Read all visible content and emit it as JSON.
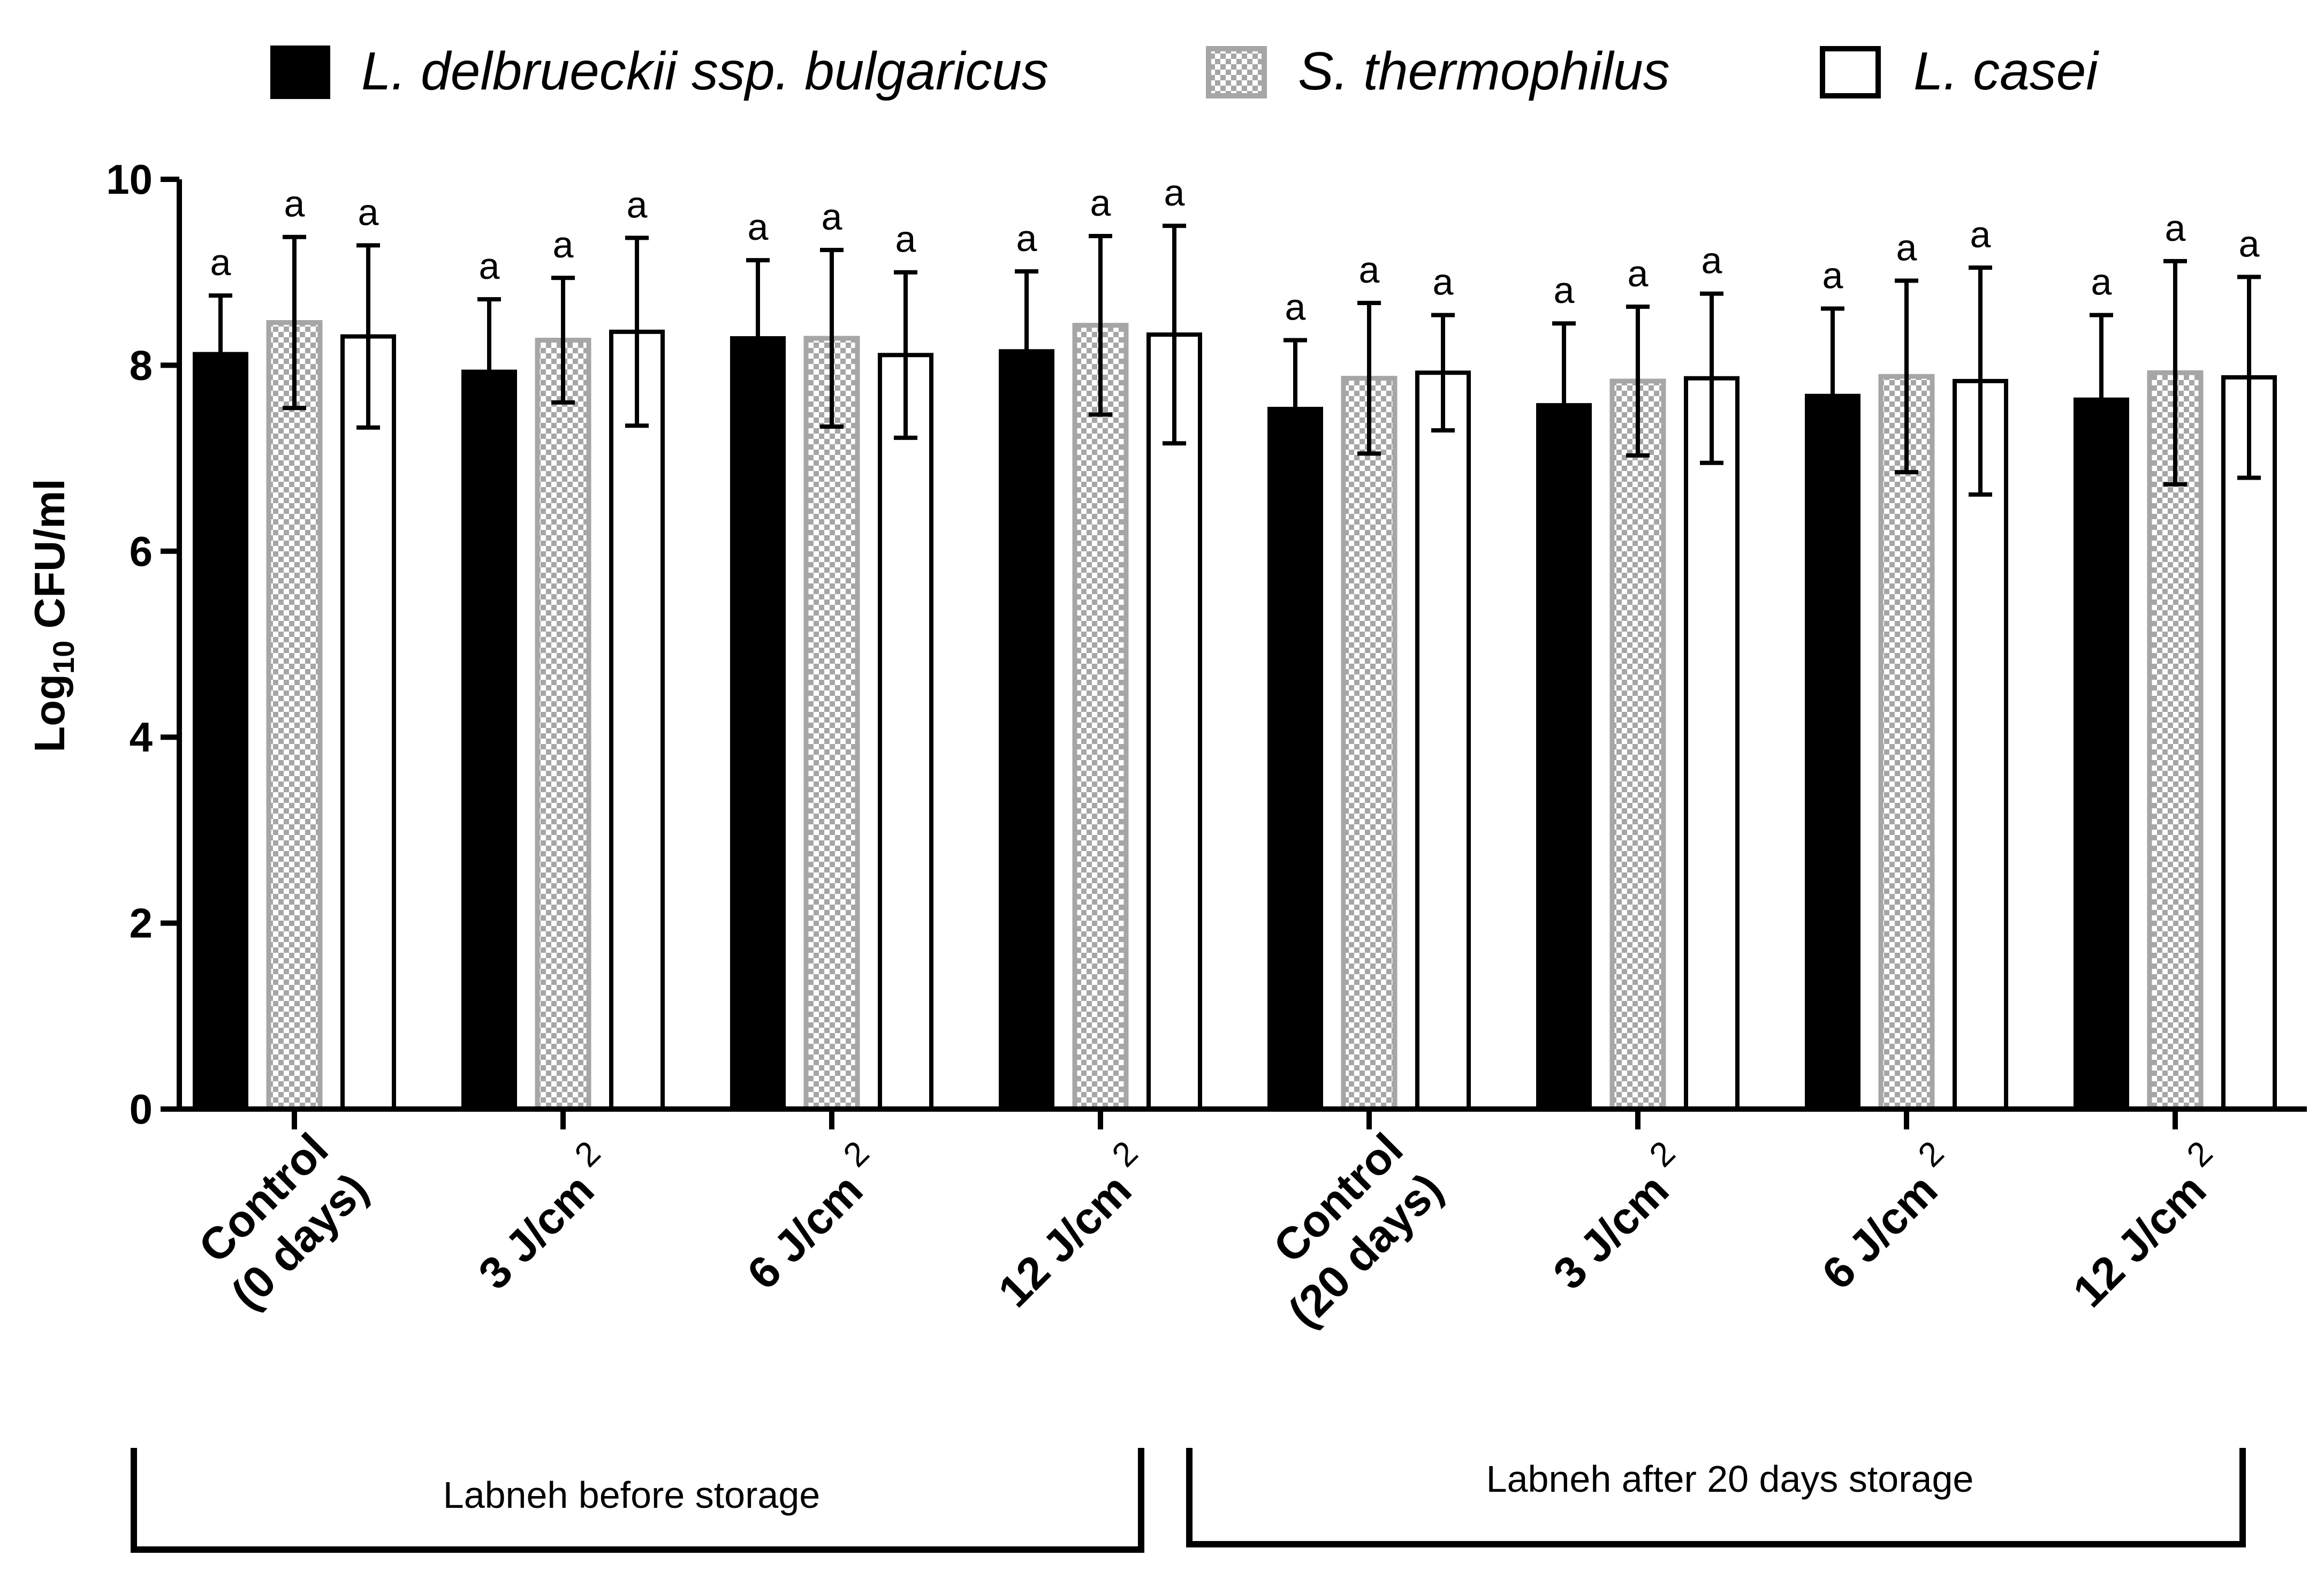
{
  "chart_data": {
    "type": "bar",
    "ylabel_main": "Log",
    "ylabel_sub": "10",
    "ylabel_rest": " CFU/ml",
    "ylim": [
      0,
      10
    ],
    "yticks": [
      "0",
      "2",
      "4",
      "6",
      "8",
      "10"
    ],
    "legend_position": "top",
    "categories": [
      {
        "line1": "Control",
        "line2": "(0 days)"
      },
      {
        "line1": "3 J/cm",
        "sup": "2"
      },
      {
        "line1": "6 J/cm",
        "sup": "2"
      },
      {
        "line1": "12 J/cm",
        "sup": "2"
      },
      {
        "line1": "Control",
        "line2": "(20 days)"
      },
      {
        "line1": "3 J/cm",
        "sup": "2"
      },
      {
        "line1": "6 J/cm",
        "sup": "2"
      },
      {
        "line1": "12 J/cm",
        "sup": "2"
      }
    ],
    "series": [
      {
        "name": "L. delbrueckii ssp. bulgaricus",
        "style": "solid",
        "color": "#000000",
        "values": [
          8.12,
          7.93,
          8.29,
          8.15,
          7.53,
          7.57,
          7.67,
          7.63
        ],
        "errors": [
          0.63,
          0.78,
          0.84,
          0.86,
          0.74,
          0.88,
          0.94,
          0.91
        ],
        "labels": [
          "a",
          "a",
          "a",
          "a",
          "a",
          "a",
          "a",
          "a"
        ]
      },
      {
        "name": "S. thermophilus",
        "style": "checkered",
        "color": "#a6a6a6",
        "values": [
          8.46,
          8.27,
          8.29,
          8.43,
          7.86,
          7.83,
          7.88,
          7.92
        ],
        "errors": [
          0.92,
          0.67,
          0.95,
          0.96,
          0.81,
          0.8,
          1.03,
          1.2
        ],
        "labels": [
          "a",
          "a",
          "a",
          "a",
          "a",
          "a",
          "a",
          "a"
        ]
      },
      {
        "name": "L. casei",
        "style": "open",
        "color": "#000000",
        "values": [
          8.31,
          8.36,
          8.11,
          8.33,
          7.92,
          7.86,
          7.83,
          7.87
        ],
        "errors": [
          0.98,
          1.01,
          0.89,
          1.17,
          0.62,
          0.91,
          1.22,
          1.08
        ],
        "labels": [
          "a",
          "a",
          "a",
          "a",
          "a",
          "a",
          "a",
          "a"
        ]
      }
    ],
    "groups": [
      {
        "label": "Labneh before storage",
        "categories": [
          0,
          3
        ]
      },
      {
        "label": "Labneh after 20 days storage",
        "categories": [
          4,
          7
        ]
      }
    ]
  }
}
